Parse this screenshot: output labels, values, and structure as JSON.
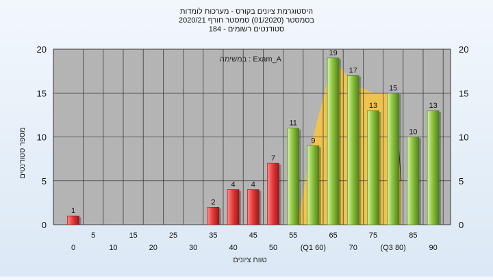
{
  "chart_data": {
    "type": "bar",
    "title_lines": [
      "היסטוגרמת ציונים בקורס - מערכות לומדות",
      "בסמסטר  (01/2020)  סמסטר חורף 2020/21",
      "סטודנטים רשומים - 184"
    ],
    "annotation": "במשימה : Exam_A",
    "xlabel": "טווח ציונים",
    "ylabel": "מספר סטודנטים",
    "ylim": [
      0,
      20
    ],
    "yticks": [
      0,
      5,
      10,
      15,
      20
    ],
    "grid": true,
    "x_tick_labels": [
      {
        "x": 0,
        "label": "0",
        "row": "lower"
      },
      {
        "x": 5,
        "label": "5",
        "row": "upper"
      },
      {
        "x": 10,
        "label": "10",
        "row": "lower"
      },
      {
        "x": 15,
        "label": "15",
        "row": "upper"
      },
      {
        "x": 20,
        "label": "20",
        "row": "lower"
      },
      {
        "x": 25,
        "label": "25",
        "row": "upper"
      },
      {
        "x": 30,
        "label": "30",
        "row": "lower"
      },
      {
        "x": 35,
        "label": "35",
        "row": "upper"
      },
      {
        "x": 40,
        "label": "40",
        "row": "lower"
      },
      {
        "x": 45,
        "label": "45",
        "row": "upper"
      },
      {
        "x": 50,
        "label": "50",
        "row": "lower"
      },
      {
        "x": 55,
        "label": "55",
        "row": "upper"
      },
      {
        "x": 60,
        "label": "(Q1 60)",
        "row": "lower"
      },
      {
        "x": 65,
        "label": "65",
        "row": "upper"
      },
      {
        "x": 70,
        "label": "70",
        "row": "lower"
      },
      {
        "x": 75,
        "label": "75",
        "row": "upper"
      },
      {
        "x": 80,
        "label": "(Q3 80)",
        "row": "lower"
      },
      {
        "x": 85,
        "label": "85",
        "row": "upper"
      },
      {
        "x": 90,
        "label": "90",
        "row": "lower"
      }
    ],
    "bars": [
      {
        "x": 0,
        "value": 1,
        "color": "red"
      },
      {
        "x": 35,
        "value": 2,
        "color": "red"
      },
      {
        "x": 40,
        "value": 4,
        "color": "red"
      },
      {
        "x": 45,
        "value": 4,
        "color": "red"
      },
      {
        "x": 50,
        "value": 7,
        "color": "red"
      },
      {
        "x": 55,
        "value": 11,
        "color": "green"
      },
      {
        "x": 60,
        "value": 9,
        "color": "green"
      },
      {
        "x": 65,
        "value": 19,
        "color": "green"
      },
      {
        "x": 70,
        "value": 17,
        "color": "green"
      },
      {
        "x": 75,
        "value": 13,
        "color": "green"
      },
      {
        "x": 80,
        "value": 15,
        "color": "green"
      },
      {
        "x": 85,
        "value": 10,
        "color": "green"
      },
      {
        "x": 90,
        "value": 13,
        "color": "green"
      }
    ],
    "band_area": {
      "color": "#f5c445",
      "points": [
        [
          56,
          0
        ],
        [
          60,
          10
        ],
        [
          65,
          19
        ],
        [
          70,
          16
        ],
        [
          75,
          15
        ],
        [
          80,
          15
        ],
        [
          82,
          5
        ],
        [
          82,
          0
        ]
      ]
    },
    "colors": {
      "plot_bg": "#b4b4b4",
      "grid": "#3a3a3a",
      "red_bar": "#e23a3a",
      "green_bar": "#8bc34a",
      "band": "#f5c445"
    }
  }
}
